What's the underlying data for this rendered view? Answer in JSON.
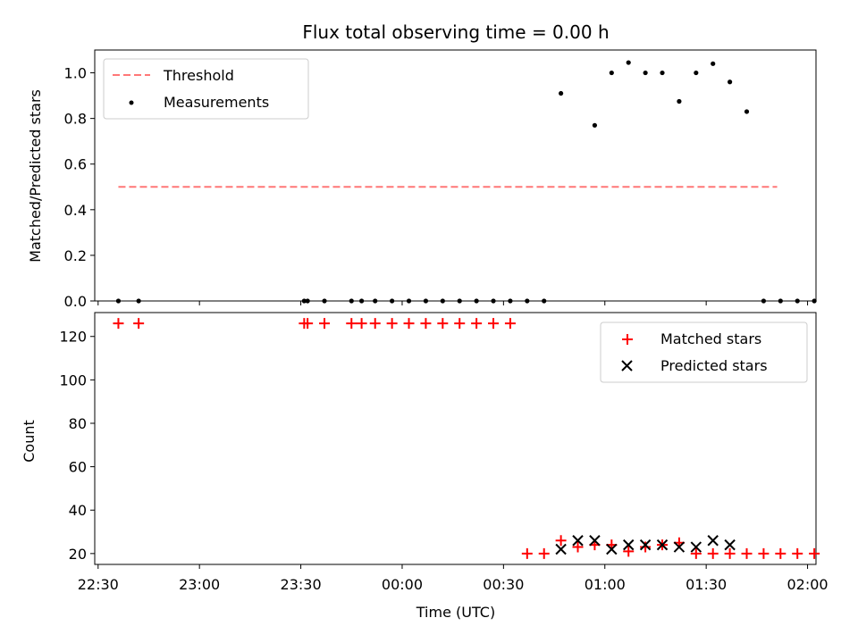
{
  "chart_data": [
    {
      "type": "scatter",
      "title": "Flux total observing time = 0.00 h",
      "xlabel": "",
      "ylabel": "Matched/Predicted stars",
      "ylim": [
        0,
        1.1
      ],
      "yticks": [
        0.0,
        0.2,
        0.4,
        0.6,
        0.8,
        1.0
      ],
      "ytick_labels": [
        "0.0",
        "0.2",
        "0.4",
        "0.6",
        "0.8",
        "1.0"
      ],
      "x_axis": "time (minutes after 22:30 UTC)",
      "legend_position": "upper left",
      "threshold": {
        "name": "Threshold",
        "color": "#ff7777",
        "y": 0.5,
        "x_range": [
          6,
          201
        ]
      },
      "series": [
        {
          "name": "Measurements",
          "color": "#000000",
          "x": [
            6,
            12,
            61,
            62,
            67,
            75,
            78,
            82,
            87,
            92,
            97,
            102,
            107,
            112,
            117,
            122,
            127,
            132,
            137,
            147,
            152,
            157,
            162,
            167,
            172,
            177,
            182,
            187,
            192,
            197,
            202,
            207,
            212
          ],
          "y": [
            0,
            0,
            0,
            0,
            0,
            0,
            0,
            0,
            0,
            0,
            0,
            0,
            0,
            0,
            0,
            0,
            0,
            0,
            0.91,
            0.77,
            1.0,
            1.045,
            1.0,
            1.0,
            0.875,
            1.0,
            1.04,
            0.96,
            0.83,
            0,
            0,
            0,
            0
          ]
        }
      ]
    },
    {
      "type": "scatter",
      "title": "",
      "xlabel": "Time (UTC)",
      "ylabel": "Count",
      "ylim": [
        15,
        131
      ],
      "yticks": [
        20,
        40,
        60,
        80,
        100,
        120
      ],
      "ytick_labels": [
        "20",
        "40",
        "60",
        "80",
        "100",
        "120"
      ],
      "xticks": [
        0,
        30,
        60,
        90,
        120,
        150,
        180,
        210
      ],
      "xtick_labels": [
        "22:30",
        "23:00",
        "23:30",
        "00:00",
        "00:30",
        "01:00",
        "01:30",
        "02:00"
      ],
      "xlim": [
        -1,
        212.5
      ],
      "legend_position": "upper right",
      "series": [
        {
          "name": "Matched stars",
          "color": "#ff0000",
          "marker": "+",
          "x": [
            6,
            12,
            61,
            62,
            67,
            75,
            78,
            82,
            87,
            92,
            97,
            102,
            107,
            112,
            117,
            122,
            127,
            132,
            137,
            142,
            147,
            152,
            157,
            162,
            167,
            172,
            177,
            182,
            187,
            192,
            197,
            202,
            207,
            212
          ],
          "y": [
            126,
            126,
            126,
            126,
            126,
            126,
            126,
            126,
            126,
            126,
            126,
            126,
            126,
            126,
            126,
            126,
            20,
            20,
            26,
            23,
            24,
            24,
            21,
            23,
            24,
            25,
            20,
            20,
            20,
            20,
            20,
            20,
            20,
            20
          ]
        },
        {
          "name": "Predicted stars",
          "color": "#000000",
          "marker": "x",
          "x": [
            137,
            142,
            147,
            152,
            157,
            162,
            167,
            172,
            177,
            182,
            187
          ],
          "y": [
            22,
            26,
            26,
            22,
            24,
            24,
            24,
            23,
            23,
            26,
            24
          ]
        }
      ]
    }
  ]
}
